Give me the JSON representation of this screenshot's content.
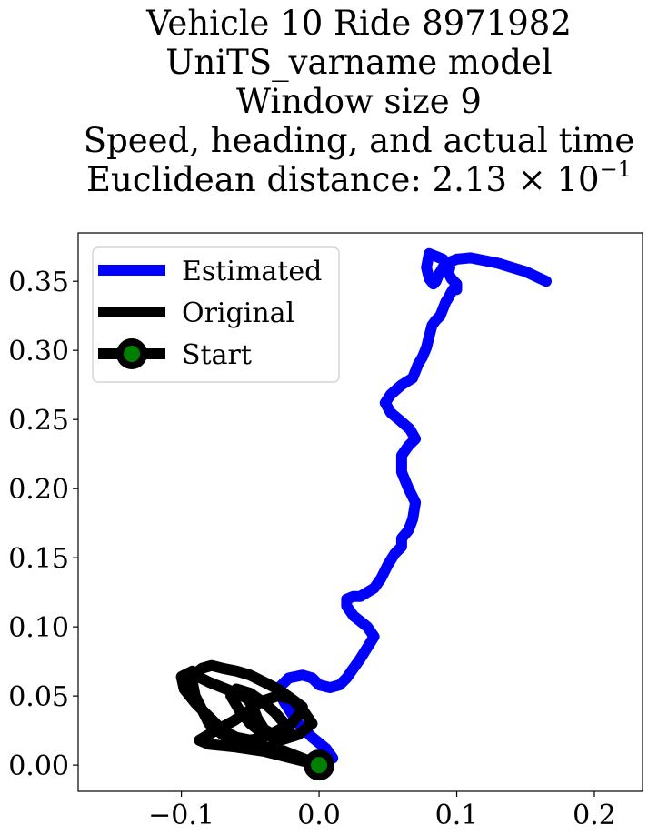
{
  "chart_data": {
    "type": "line",
    "title_lines": [
      "Vehicle 10 Ride 8971982",
      "UniTS_varname model",
      "Window size 9",
      "Speed, heading, and actual time"
    ],
    "title_metric": {
      "prefix": "Euclidean distance: ",
      "mantissa": "2.13",
      "times": "×",
      "base": "10",
      "exponent": "−1"
    },
    "xlim": [
      -0.175,
      0.235
    ],
    "ylim": [
      -0.019,
      0.385
    ],
    "xticks": [
      {
        "value": -0.1,
        "label": "−0.1"
      },
      {
        "value": 0.0,
        "label": "0.0"
      },
      {
        "value": 0.1,
        "label": "0.1"
      },
      {
        "value": 0.2,
        "label": "0.2"
      }
    ],
    "yticks": [
      {
        "value": 0.0,
        "label": "0.00"
      },
      {
        "value": 0.05,
        "label": "0.05"
      },
      {
        "value": 0.1,
        "label": "0.10"
      },
      {
        "value": 0.15,
        "label": "0.15"
      },
      {
        "value": 0.2,
        "label": "0.20"
      },
      {
        "value": 0.25,
        "label": "0.25"
      },
      {
        "value": 0.3,
        "label": "0.30"
      },
      {
        "value": 0.35,
        "label": "0.35"
      }
    ],
    "legend_position": "upper-left",
    "series": [
      {
        "name": "Estimated",
        "color": "#0000ff",
        "x": [
          0.01,
          0.005,
          -0.005,
          -0.015,
          -0.025,
          -0.03,
          -0.022,
          -0.012,
          -0.005,
          0.0,
          0.008,
          0.015,
          0.02,
          0.025,
          0.03,
          0.035,
          0.04,
          0.035,
          0.025,
          0.02,
          0.02,
          0.025,
          0.03,
          0.04,
          0.045,
          0.05,
          0.055,
          0.06,
          0.06,
          0.065,
          0.068,
          0.07,
          0.065,
          0.06,
          0.06,
          0.065,
          0.07,
          0.066,
          0.058,
          0.052,
          0.048,
          0.052,
          0.06,
          0.068,
          0.072,
          0.075,
          0.078,
          0.08,
          0.082,
          0.085,
          0.088,
          0.09,
          0.092,
          0.094,
          0.096,
          0.098,
          0.1,
          0.1,
          0.096,
          0.094,
          0.095,
          0.092,
          0.09,
          0.085,
          0.08,
          0.078,
          0.08,
          0.083,
          0.085,
          0.087,
          0.09,
          0.095,
          0.1,
          0.11,
          0.12,
          0.13,
          0.14,
          0.15,
          0.165
        ],
        "y": [
          0.005,
          0.012,
          0.02,
          0.03,
          0.045,
          0.055,
          0.063,
          0.065,
          0.063,
          0.058,
          0.056,
          0.058,
          0.063,
          0.07,
          0.077,
          0.085,
          0.093,
          0.1,
          0.108,
          0.115,
          0.12,
          0.122,
          0.122,
          0.128,
          0.135,
          0.145,
          0.153,
          0.158,
          0.164,
          0.17,
          0.178,
          0.19,
          0.2,
          0.212,
          0.224,
          0.231,
          0.236,
          0.243,
          0.25,
          0.255,
          0.262,
          0.268,
          0.275,
          0.28,
          0.29,
          0.295,
          0.302,
          0.31,
          0.318,
          0.322,
          0.325,
          0.33,
          0.335,
          0.338,
          0.342,
          0.345,
          0.344,
          0.348,
          0.352,
          0.356,
          0.36,
          0.363,
          0.366,
          0.368,
          0.37,
          0.36,
          0.352,
          0.348,
          0.35,
          0.355,
          0.36,
          0.364,
          0.366,
          0.367,
          0.365,
          0.363,
          0.36,
          0.357,
          0.35
        ]
      },
      {
        "name": "Original",
        "color": "#000000",
        "x": [
          0.0,
          -0.02,
          -0.04,
          -0.06,
          -0.08,
          -0.087,
          -0.075,
          -0.062,
          -0.05,
          -0.042,
          -0.03,
          -0.02,
          -0.012,
          -0.005,
          -0.015,
          -0.028,
          -0.04,
          -0.05,
          -0.058,
          -0.064,
          -0.06,
          -0.05,
          -0.04,
          -0.032,
          -0.025,
          -0.02,
          -0.03,
          -0.04,
          -0.045,
          -0.048,
          -0.052,
          -0.06,
          -0.07,
          -0.08,
          -0.088,
          -0.092,
          -0.1,
          -0.098,
          -0.09,
          -0.08,
          -0.07,
          -0.06,
          -0.05,
          -0.04,
          -0.03,
          -0.02,
          -0.015,
          -0.012,
          -0.02,
          -0.03,
          -0.04,
          -0.05,
          -0.06,
          -0.07,
          -0.078,
          -0.085,
          -0.09,
          -0.092,
          -0.09,
          -0.085,
          -0.08,
          -0.07,
          -0.06,
          -0.05,
          -0.04,
          -0.03,
          -0.025,
          -0.02,
          -0.015,
          -0.01,
          -0.005,
          -0.002,
          0.0
        ],
        "y": [
          0.0,
          0.005,
          0.01,
          0.013,
          0.015,
          0.018,
          0.025,
          0.032,
          0.04,
          0.046,
          0.05,
          0.048,
          0.04,
          0.03,
          0.022,
          0.018,
          0.022,
          0.03,
          0.04,
          0.05,
          0.055,
          0.052,
          0.045,
          0.038,
          0.03,
          0.022,
          0.02,
          0.026,
          0.034,
          0.042,
          0.048,
          0.052,
          0.056,
          0.06,
          0.064,
          0.068,
          0.064,
          0.055,
          0.045,
          0.035,
          0.025,
          0.02,
          0.018,
          0.02,
          0.025,
          0.03,
          0.036,
          0.042,
          0.048,
          0.055,
          0.06,
          0.065,
          0.068,
          0.07,
          0.072,
          0.07,
          0.066,
          0.06,
          0.05,
          0.04,
          0.03,
          0.022,
          0.016,
          0.014,
          0.013,
          0.012,
          0.01,
          0.008,
          0.006,
          0.004,
          0.002,
          0.001,
          0.0
        ]
      }
    ],
    "start_point": {
      "label": "Start",
      "x": 0.0,
      "y": 0.0,
      "edge_color": "#000000",
      "face_color": "#008000"
    }
  }
}
